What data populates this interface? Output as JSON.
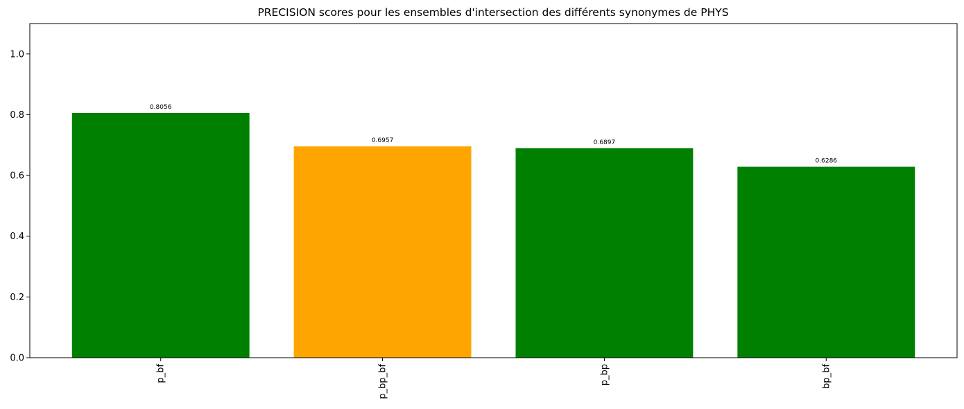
{
  "chart_data": {
    "type": "bar",
    "title": "PRECISION scores pour les ensembles d'intersection des différents synonymes de PHYS",
    "xlabel": "",
    "ylabel": "",
    "categories": [
      "p_bf",
      "p_bp_bf",
      "p_bp",
      "bp_bf"
    ],
    "values": [
      0.8056,
      0.6957,
      0.6897,
      0.6286
    ],
    "value_labels": [
      "0.8056",
      "0.6957",
      "0.6897",
      "0.6286"
    ],
    "bar_colors": [
      "#008000",
      "#FFA500",
      "#008000",
      "#008000"
    ],
    "ylim": [
      0,
      1.1
    ],
    "yticks": [
      0.0,
      0.2,
      0.4,
      0.6,
      0.8,
      1.0
    ],
    "ytick_labels": [
      "0.0",
      "0.2",
      "0.4",
      "0.6",
      "0.8",
      "1.0"
    ],
    "grid": false,
    "legend": "none",
    "x_tick_rotation": 90
  }
}
